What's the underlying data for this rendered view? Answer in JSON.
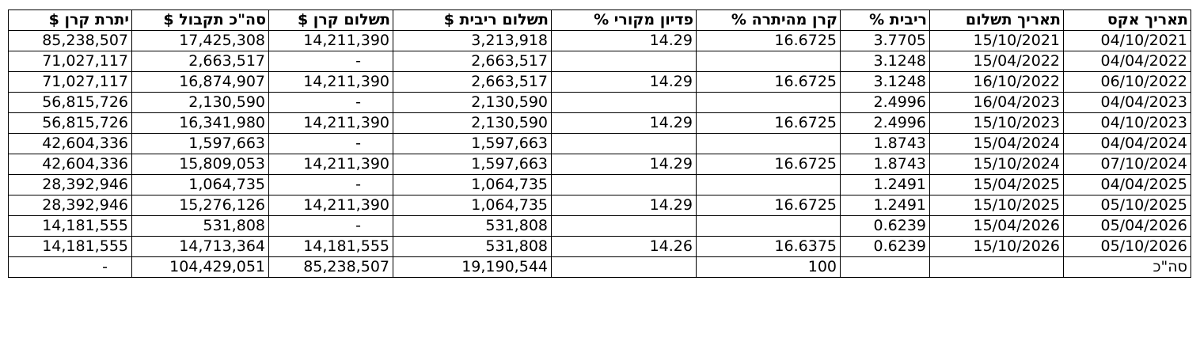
{
  "table": {
    "headers": [
      "$ יתרת קרן",
      "$ סה\"כ תקבול",
      "$ תשלום קרן",
      "$ תשלום ריבית",
      "% פדיון מקורי",
      "% קרן מהיתרה",
      "% ריבית",
      "תאריך תשלום",
      "תאריך אקס"
    ],
    "rows": [
      [
        "85,238,507",
        "17,425,308",
        "14,211,390",
        "3,213,918",
        "14.29",
        "16.6725",
        "3.7705",
        "15/10/2021",
        "04/10/2021"
      ],
      [
        "71,027,117",
        "2,663,517",
        "-",
        "2,663,517",
        "",
        "",
        "3.1248",
        "15/04/2022",
        "04/04/2022"
      ],
      [
        "71,027,117",
        "16,874,907",
        "14,211,390",
        "2,663,517",
        "14.29",
        "16.6725",
        "3.1248",
        "16/10/2022",
        "06/10/2022"
      ],
      [
        "56,815,726",
        "2,130,590",
        "-",
        "2,130,590",
        "",
        "",
        "2.4996",
        "16/04/2023",
        "04/04/2023"
      ],
      [
        "56,815,726",
        "16,341,980",
        "14,211,390",
        "2,130,590",
        "14.29",
        "16.6725",
        "2.4996",
        "15/10/2023",
        "04/10/2023"
      ],
      [
        "42,604,336",
        "1,597,663",
        "-",
        "1,597,663",
        "",
        "",
        "1.8743",
        "15/04/2024",
        "04/04/2024"
      ],
      [
        "42,604,336",
        "15,809,053",
        "14,211,390",
        "1,597,663",
        "14.29",
        "16.6725",
        "1.8743",
        "15/10/2024",
        "07/10/2024"
      ],
      [
        "28,392,946",
        "1,064,735",
        "-",
        "1,064,735",
        "",
        "",
        "1.2491",
        "15/04/2025",
        "04/04/2025"
      ],
      [
        "28,392,946",
        "15,276,126",
        "14,211,390",
        "1,064,735",
        "14.29",
        "16.6725",
        "1.2491",
        "15/10/2025",
        "05/10/2025"
      ],
      [
        "14,181,555",
        "531,808",
        "-",
        "531,808",
        "",
        "",
        "0.6239",
        "15/04/2026",
        "05/04/2026"
      ],
      [
        "14,181,555",
        "14,713,364",
        "14,181,555",
        "531,808",
        "14.26",
        "16.6375",
        "0.6239",
        "15/10/2026",
        "05/10/2026"
      ]
    ],
    "total_row": [
      "-",
      "104,429,051",
      "85,238,507",
      "19,190,544",
      "",
      "100",
      "",
      "",
      "סה\"כ"
    ]
  }
}
